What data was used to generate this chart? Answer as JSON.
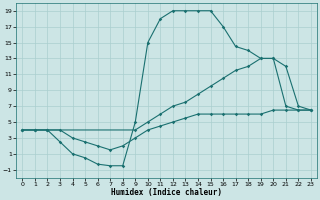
{
  "xlabel": "Humidex (Indice chaleur)",
  "background_color": "#cce5e5",
  "grid_color": "#aacfcf",
  "line_color": "#1a7070",
  "xlim": [
    -0.5,
    23.5
  ],
  "ylim": [
    -2,
    20
  ],
  "xticks": [
    0,
    1,
    2,
    3,
    4,
    5,
    6,
    7,
    8,
    9,
    10,
    11,
    12,
    13,
    14,
    15,
    16,
    17,
    18,
    19,
    20,
    21,
    22,
    23
  ],
  "yticks": [
    -1,
    1,
    3,
    5,
    7,
    9,
    11,
    13,
    15,
    17,
    19
  ],
  "line1_x": [
    0,
    1,
    2,
    3,
    4,
    5,
    6,
    7,
    8,
    9,
    10,
    11,
    12,
    13,
    14,
    15,
    16,
    17,
    18,
    19,
    20,
    21,
    22,
    23
  ],
  "line1_y": [
    4,
    4,
    4,
    2.5,
    1,
    0.5,
    -0.3,
    -0.5,
    -0.5,
    5,
    15,
    18,
    19,
    19,
    19,
    19,
    17,
    14.5,
    14,
    13,
    13,
    7,
    6.5,
    6.5
  ],
  "line2_x": [
    0,
    1,
    2,
    9,
    10,
    11,
    12,
    13,
    14,
    15,
    16,
    17,
    18,
    19,
    20,
    21,
    22,
    23
  ],
  "line2_y": [
    4,
    4,
    4,
    4,
    5,
    6,
    7,
    7.5,
    8.5,
    9.5,
    10.5,
    11.5,
    12,
    13,
    13,
    12,
    7,
    6.5
  ],
  "line3_x": [
    0,
    1,
    2,
    3,
    4,
    5,
    6,
    7,
    8,
    9,
    10,
    11,
    12,
    13,
    14,
    15,
    16,
    17,
    18,
    19,
    20,
    21,
    22,
    23
  ],
  "line3_y": [
    4,
    4,
    4,
    4,
    3,
    2.5,
    2,
    1.5,
    2,
    3,
    4,
    4.5,
    5,
    5.5,
    6,
    6,
    6,
    6,
    6,
    6,
    6.5,
    6.5,
    6.5,
    6.5
  ],
  "figsize": [
    3.2,
    2.0
  ],
  "dpi": 100
}
